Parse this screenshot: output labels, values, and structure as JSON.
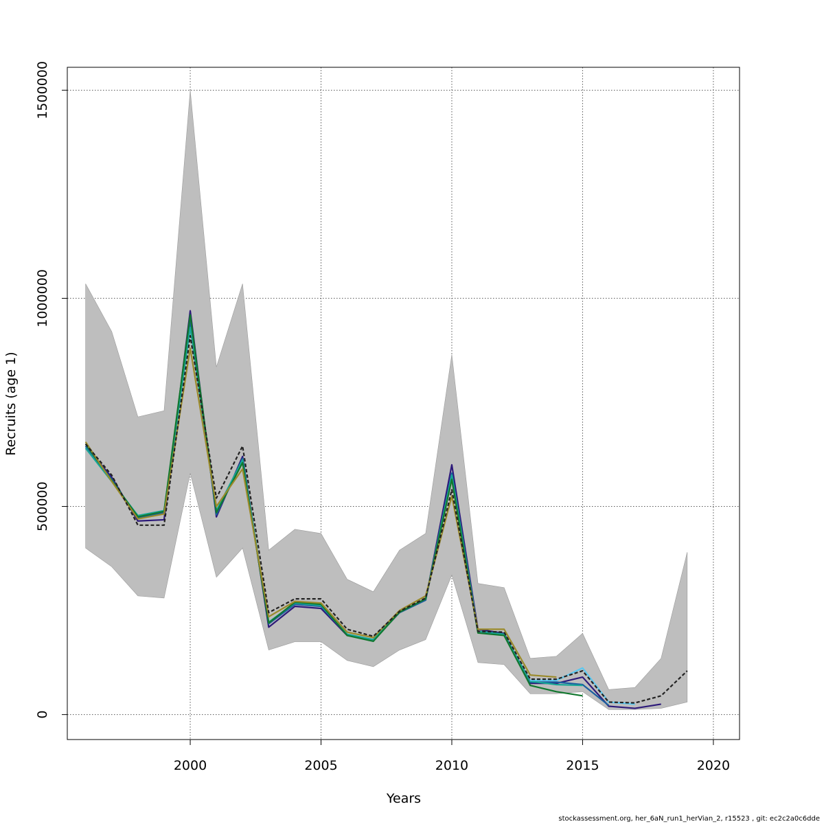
{
  "footer": "stockassessment.org, her_6aN_run1_herVian_2, r15523 , git: ec2c2a0c6dde",
  "chart_data": {
    "type": "line",
    "xlabel": "Years",
    "ylabel": "Recruits (age 1)",
    "xlim": [
      1995.3,
      2021.0
    ],
    "ylim": [
      -60000,
      1555000
    ],
    "x_ticks": [
      2000,
      2005,
      2010,
      2015,
      2020
    ],
    "x_tick_labels": [
      "2000",
      "2005",
      "2010",
      "2015",
      "2020"
    ],
    "y_ticks": [
      0,
      500000,
      1000000,
      1500000
    ],
    "y_tick_labels": [
      "0",
      "500000",
      "1000000",
      "1500000"
    ],
    "grid": true,
    "band_color": "#bebebe",
    "confidence_band": {
      "x": [
        1996,
        1997,
        1998,
        1999,
        2000,
        2001,
        2002,
        2003,
        2004,
        2005,
        2006,
        2007,
        2008,
        2009,
        2010,
        2011,
        2012,
        2013,
        2014,
        2015,
        2016,
        2017,
        2018,
        2019
      ],
      "upper": [
        1035000,
        920000,
        715000,
        730000,
        1500000,
        835000,
        1035000,
        395000,
        445000,
        435000,
        325000,
        295000,
        395000,
        435000,
        865000,
        315000,
        305000,
        135000,
        140000,
        195000,
        60000,
        65000,
        135000,
        390000
      ],
      "lower": [
        400000,
        355000,
        285000,
        280000,
        580000,
        330000,
        400000,
        155000,
        175000,
        175000,
        130000,
        115000,
        155000,
        180000,
        335000,
        125000,
        120000,
        50000,
        50000,
        55000,
        12000,
        12000,
        15000,
        30000
      ]
    },
    "series": [
      {
        "color": "#222222",
        "dashed": true,
        "x": [
          1996,
          1997,
          1998,
          1999,
          2000,
          2001,
          2002,
          2003,
          2004,
          2005,
          2006,
          2007,
          2008,
          2009,
          2010,
          2011,
          2012,
          2013,
          2014,
          2015,
          2016,
          2017,
          2018,
          2019
        ],
        "values": [
          650000,
          575000,
          455000,
          455000,
          910000,
          520000,
          645000,
          245000,
          278000,
          278000,
          205000,
          188000,
          248000,
          280000,
          540000,
          200000,
          198000,
          85000,
          85000,
          105000,
          30000,
          28000,
          45000,
          105000
        ]
      },
      {
        "color": "#2d1a7a",
        "dashed": false,
        "x": [
          1996,
          1997,
          1998,
          1999,
          2000,
          2001,
          2002,
          2003,
          2004,
          2005,
          2006,
          2007,
          2008,
          2009,
          2010,
          2011,
          2012,
          2013,
          2014,
          2015,
          2016,
          2017,
          2018
        ],
        "values": [
          645000,
          570000,
          465000,
          468000,
          970000,
          475000,
          620000,
          210000,
          260000,
          255000,
          190000,
          180000,
          245000,
          275000,
          600000,
          205000,
          195000,
          75000,
          75000,
          90000,
          20000,
          15000,
          25000
        ]
      },
      {
        "color": "#1a5fa0",
        "dashed": false,
        "x": [
          1996,
          1997,
          1998,
          1999,
          2000,
          2001,
          2002,
          2003,
          2004,
          2005,
          2006,
          2007,
          2008,
          2009,
          2010,
          2011,
          2012,
          2013,
          2014,
          2015,
          2016
        ],
        "values": [
          645000,
          565000,
          472000,
          485000,
          945000,
          480000,
          615000,
          218000,
          265000,
          260000,
          192000,
          178000,
          245000,
          275000,
          580000,
          200000,
          192000,
          78000,
          78000,
          72000,
          22000
        ]
      },
      {
        "color": "#17a695",
        "dashed": false,
        "x": [
          1996,
          1997,
          1998,
          1999,
          2000,
          2001,
          2002,
          2003,
          2004,
          2005,
          2006,
          2007,
          2008,
          2009,
          2010,
          2011,
          2012,
          2013,
          2014,
          2015
        ],
        "values": [
          640000,
          560000,
          478000,
          490000,
          930000,
          490000,
          612000,
          222000,
          268000,
          262000,
          193000,
          180000,
          246000,
          278000,
          575000,
          200000,
          193000,
          80000,
          72000,
          70000
        ]
      },
      {
        "color": "#11772e",
        "dashed": false,
        "x": [
          1996,
          1997,
          1998,
          1999,
          2000,
          2001,
          2002,
          2003,
          2004,
          2005,
          2006,
          2007,
          2008,
          2009,
          2010,
          2011,
          2012,
          2013,
          2014,
          2015
        ],
        "values": [
          650000,
          562000,
          475000,
          488000,
          960000,
          485000,
          605000,
          220000,
          270000,
          265000,
          190000,
          176000,
          246000,
          278000,
          565000,
          196000,
          190000,
          70000,
          55000,
          45000
        ]
      },
      {
        "color": "#9a8a2a",
        "dashed": false,
        "x": [
          1996,
          1997,
          1998,
          1999,
          2000,
          2001,
          2002,
          2003,
          2004,
          2005,
          2006,
          2007,
          2008,
          2009,
          2010,
          2011,
          2012,
          2013,
          2014
        ],
        "values": [
          655000,
          560000,
          470000,
          482000,
          880000,
          500000,
          590000,
          235000,
          272000,
          268000,
          198000,
          185000,
          250000,
          285000,
          525000,
          205000,
          205000,
          95000,
          90000
        ]
      },
      {
        "color": "#5bc8f0",
        "dashed": false,
        "x": [
          2013,
          2014,
          2015,
          2016,
          2017
        ],
        "values": [
          82000,
          82000,
          112000,
          30000,
          25000
        ]
      }
    ]
  }
}
